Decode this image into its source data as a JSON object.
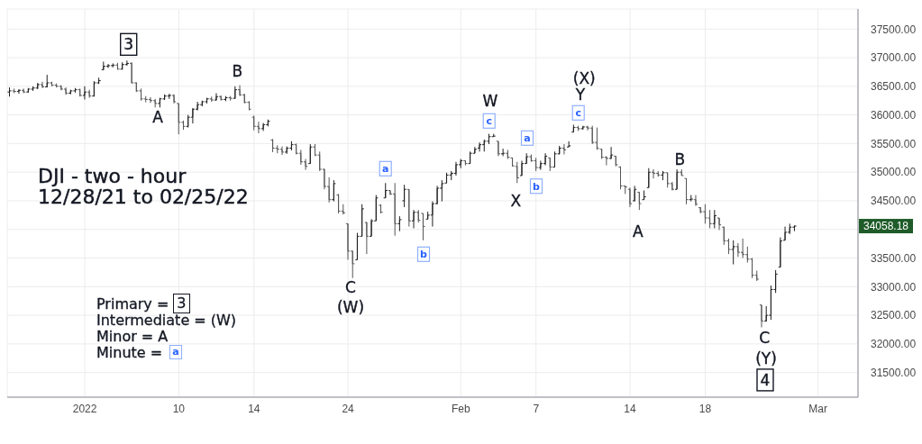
{
  "chart_data": {
    "type": "candlestick",
    "title": "DJI - two - hour",
    "subtitle": "12/28/21 to 02/25/22",
    "categories": [
      null,
      null,
      null,
      null,
      null,
      null,
      null,
      null,
      null,
      null,
      null,
      null,
      null,
      null,
      null,
      null,
      "2022",
      null,
      null,
      null,
      null,
      null,
      null,
      null,
      null,
      null,
      null,
      null,
      null,
      null,
      null,
      null,
      null,
      null,
      null,
      null,
      "10",
      null,
      null,
      null,
      null,
      null,
      null,
      null,
      null,
      null,
      null,
      null,
      null,
      null,
      null,
      null,
      "14",
      null,
      null,
      null,
      null,
      null,
      null,
      null,
      null,
      null,
      null,
      null,
      null,
      null,
      null,
      null,
      null,
      null,
      null,
      null,
      "24",
      null,
      null,
      null,
      null,
      null,
      null,
      null,
      null,
      null,
      null,
      null,
      null,
      null,
      null,
      null,
      null,
      null,
      null,
      null,
      null,
      null,
      null,
      null,
      "Feb",
      null,
      null,
      null,
      null,
      null,
      null,
      null,
      null,
      null,
      null,
      null,
      null,
      null,
      null,
      null,
      "7",
      null,
      null,
      null,
      null,
      null,
      null,
      null,
      null,
      null,
      null,
      null,
      null,
      null,
      null,
      null,
      null,
      null,
      null,
      null,
      "14",
      null,
      null,
      null,
      null,
      null,
      null,
      null,
      null,
      null,
      null,
      null,
      null,
      null,
      null,
      null,
      "18",
      null,
      null,
      null,
      null,
      null,
      null,
      null,
      null,
      null,
      null,
      null,
      null,
      null,
      null,
      null,
      null,
      null,
      null,
      null,
      null,
      null,
      null,
      null,
      "Mar",
      null,
      null,
      null,
      null,
      null,
      null,
      null,
      null
    ],
    "ohlc": [
      [
        36400,
        36480,
        36320,
        36420
      ],
      [
        36420,
        36460,
        36380,
        36410
      ],
      [
        36410,
        36450,
        36370,
        36430
      ],
      [
        36430,
        36460,
        36380,
        36400
      ],
      [
        36400,
        36470,
        36390,
        36450
      ],
      [
        36450,
        36500,
        36420,
        36470
      ],
      [
        36470,
        36560,
        36450,
        36530
      ],
      [
        36530,
        36580,
        36470,
        36490
      ],
      [
        36490,
        36700,
        36480,
        36560
      ],
      [
        36560,
        36580,
        36500,
        36520
      ],
      [
        36520,
        36550,
        36480,
        36500
      ],
      [
        36500,
        36520,
        36430,
        36450
      ],
      [
        36450,
        36480,
        36350,
        36380
      ],
      [
        36380,
        36440,
        36360,
        36420
      ],
      [
        36420,
        36470,
        36390,
        36440
      ],
      [
        36440,
        36460,
        36320,
        36340
      ],
      [
        36340,
        36500,
        36270,
        36400
      ],
      [
        36400,
        36440,
        36300,
        36330
      ],
      [
        36330,
        36590,
        36320,
        36560
      ],
      [
        36560,
        36650,
        36540,
        36600
      ],
      [
        36790,
        36930,
        36780,
        36850
      ],
      [
        36850,
        36890,
        36820,
        36860
      ],
      [
        36860,
        36900,
        36830,
        36870
      ],
      [
        36870,
        36910,
        36790,
        36800
      ],
      [
        36800,
        36920,
        36790,
        36880
      ],
      [
        36880,
        36950,
        36860,
        36900
      ],
      [
        36900,
        36920,
        36550,
        36560
      ],
      [
        36560,
        36570,
        36400,
        36420
      ],
      [
        36420,
        36460,
        36250,
        36280
      ],
      [
        36280,
        36330,
        36220,
        36270
      ],
      [
        36270,
        36310,
        36210,
        36250
      ],
      [
        36250,
        36280,
        36130,
        36200
      ],
      [
        36200,
        36300,
        36130,
        36280
      ],
      [
        36280,
        36360,
        36260,
        36330
      ],
      [
        36330,
        36370,
        36280,
        36340
      ],
      [
        36340,
        36360,
        36200,
        36230
      ],
      [
        36200,
        36200,
        35660,
        35870
      ],
      [
        35870,
        35900,
        35740,
        35800
      ],
      [
        35800,
        36000,
        35780,
        35960
      ],
      [
        35960,
        36120,
        35850,
        36100
      ],
      [
        36100,
        36230,
        36080,
        36180
      ],
      [
        36180,
        36250,
        36150,
        36230
      ],
      [
        36230,
        36300,
        36200,
        36280
      ],
      [
        36280,
        36320,
        36230,
        36260
      ],
      [
        36260,
        36380,
        36250,
        36320
      ],
      [
        36320,
        36340,
        36250,
        36270
      ],
      [
        36270,
        36330,
        36240,
        36300
      ],
      [
        36300,
        36330,
        36250,
        36290
      ],
      [
        36290,
        36500,
        36280,
        36440
      ],
      [
        36440,
        36520,
        36330,
        36350
      ],
      [
        36350,
        36370,
        36200,
        36220
      ],
      [
        36220,
        36240,
        36080,
        36100
      ],
      [
        35960,
        35990,
        35730,
        35800
      ],
      [
        35800,
        35880,
        35680,
        35760
      ],
      [
        35760,
        35860,
        35720,
        35830
      ],
      [
        35830,
        35920,
        35800,
        35890
      ],
      [
        35560,
        35580,
        35350,
        35420
      ],
      [
        35420,
        35470,
        35330,
        35400
      ],
      [
        35400,
        35450,
        35300,
        35350
      ],
      [
        35350,
        35450,
        35320,
        35420
      ],
      [
        35420,
        35540,
        35380,
        35480
      ],
      [
        35480,
        35500,
        35310,
        35330
      ],
      [
        35330,
        35390,
        35130,
        35180
      ],
      [
        35180,
        35230,
        35040,
        35100
      ],
      [
        35150,
        35490,
        35150,
        35440
      ],
      [
        35440,
        35490,
        35280,
        35300
      ],
      [
        35300,
        35360,
        35020,
        35050
      ],
      [
        35050,
        35060,
        34700,
        34750
      ],
      [
        34750,
        34910,
        34470,
        34520
      ],
      [
        34520,
        34860,
        34490,
        34800
      ],
      [
        34600,
        34620,
        34280,
        34320
      ],
      [
        34320,
        34440,
        34260,
        34290
      ],
      [
        34100,
        34100,
        33470,
        33620
      ],
      [
        33620,
        33630,
        33150,
        33400
      ],
      [
        33470,
        33940,
        33470,
        33880
      ],
      [
        33880,
        34440,
        33880,
        34360
      ],
      [
        34120,
        34130,
        33570,
        33880
      ],
      [
        33880,
        34180,
        33880,
        34150
      ],
      [
        34150,
        34600,
        34150,
        34550
      ],
      [
        34420,
        34440,
        34280,
        34300
      ],
      [
        34550,
        34810,
        34550,
        34680
      ],
      [
        34680,
        34680,
        34600,
        34620
      ],
      [
        34620,
        34810,
        33890,
        34100
      ],
      [
        34100,
        34230,
        33970,
        34170
      ],
      [
        34500,
        34780,
        34390,
        34700
      ],
      [
        34700,
        34700,
        34050,
        34150
      ],
      [
        34150,
        34340,
        34020,
        34300
      ],
      [
        34300,
        34340,
        34120,
        34160
      ],
      [
        34280,
        34280,
        33810,
        34050
      ],
      [
        34180,
        34310,
        34180,
        34250
      ],
      [
        34250,
        34490,
        34050,
        34450
      ],
      [
        34450,
        34760,
        34440,
        34720
      ],
      [
        34720,
        34860,
        34490,
        34800
      ],
      [
        34810,
        34990,
        34810,
        34950
      ],
      [
        34950,
        35020,
        34860,
        34980
      ],
      [
        34980,
        35180,
        34940,
        35130
      ],
      [
        35130,
        35230,
        35070,
        35200
      ],
      [
        35200,
        35200,
        35120,
        35150
      ],
      [
        35150,
        35360,
        35150,
        35330
      ],
      [
        35330,
        35440,
        35330,
        35400
      ],
      [
        35420,
        35520,
        35360,
        35480
      ],
      [
        35480,
        35570,
        35360,
        35540
      ],
      [
        35540,
        35670,
        35490,
        35620
      ],
      [
        35620,
        35670,
        35620,
        35630
      ],
      [
        35540,
        35540,
        35280,
        35320
      ],
      [
        35320,
        35410,
        35280,
        35330
      ],
      [
        35330,
        35390,
        35230,
        35260
      ],
      [
        35250,
        35250,
        35100,
        35110
      ],
      [
        35100,
        35180,
        34810,
        34900
      ],
      [
        34940,
        35200,
        34940,
        35150
      ],
      [
        35150,
        35330,
        35150,
        35270
      ],
      [
        35270,
        35310,
        35180,
        35200
      ],
      [
        35200,
        35250,
        35020,
        35080
      ],
      [
        35080,
        35200,
        35040,
        35150
      ],
      [
        35150,
        35330,
        35120,
        35280
      ],
      [
        35250,
        35250,
        35020,
        35090
      ],
      [
        35090,
        35360,
        35090,
        35320
      ],
      [
        35320,
        35460,
        35310,
        35420
      ],
      [
        35420,
        35490,
        35310,
        35390
      ],
      [
        35440,
        35540,
        35440,
        35460
      ],
      [
        35700,
        35830,
        35700,
        35780
      ],
      [
        35780,
        35810,
        35720,
        35760
      ],
      [
        35760,
        35810,
        35740,
        35790
      ],
      [
        35790,
        35810,
        35730,
        35770
      ],
      [
        35770,
        35810,
        35490,
        35520
      ],
      [
        35520,
        35780,
        35390,
        35420
      ],
      [
        35400,
        35410,
        35230,
        35260
      ],
      [
        35260,
        35280,
        35120,
        35240
      ],
      [
        35240,
        35440,
        35230,
        35300
      ],
      [
        35280,
        35280,
        35100,
        35130
      ],
      [
        35090,
        35100,
        34700,
        34760
      ],
      [
        34760,
        34760,
        34620,
        34740
      ],
      [
        34700,
        34730,
        34390,
        34450
      ],
      [
        34500,
        34760,
        34490,
        34700
      ],
      [
        34650,
        34650,
        34340,
        34450
      ],
      [
        34520,
        34680,
        34520,
        34570
      ],
      [
        34730,
        35070,
        34730,
        35000
      ],
      [
        35000,
        35050,
        34890,
        34980
      ],
      [
        34980,
        35020,
        34920,
        34950
      ],
      [
        34950,
        35020,
        34860,
        34990
      ],
      [
        34990,
        34990,
        34730,
        34800
      ],
      [
        34800,
        34830,
        34680,
        34700
      ],
      [
        34700,
        35050,
        34700,
        35000
      ],
      [
        35000,
        35050,
        34940,
        34940
      ],
      [
        34890,
        34890,
        34440,
        34520
      ],
      [
        34520,
        34600,
        34490,
        34530
      ],
      [
        34520,
        34600,
        34410,
        34440
      ],
      [
        34380,
        34390,
        34280,
        34310
      ],
      [
        34310,
        34440,
        34100,
        34200
      ],
      [
        34200,
        34340,
        34020,
        34100
      ],
      [
        34100,
        34340,
        34020,
        34240
      ],
      [
        34200,
        34200,
        33990,
        34080
      ],
      [
        34040,
        34050,
        33730,
        33800
      ],
      [
        33800,
        33840,
        33570,
        33650
      ],
      [
        33650,
        33810,
        33390,
        33700
      ],
      [
        33700,
        33760,
        33520,
        33600
      ],
      [
        33600,
        33840,
        33500,
        33560
      ],
      [
        33560,
        33700,
        33420,
        33480
      ],
      [
        33480,
        33500,
        33150,
        33200
      ],
      [
        33200,
        33280,
        33100,
        33130
      ],
      [
        32680,
        32680,
        32290,
        32400
      ],
      [
        32400,
        32660,
        32390,
        32500
      ],
      [
        32500,
        33020,
        32420,
        32950
      ],
      [
        32950,
        33290,
        32890,
        33220
      ],
      [
        33340,
        33860,
        33340,
        33800
      ],
      [
        33810,
        34050,
        33810,
        33950
      ],
      [
        33950,
        34100,
        33920,
        34040
      ],
      [
        34040,
        34070,
        33970,
        34058.18
      ],
      null,
      null,
      null,
      null,
      null,
      null,
      null,
      null,
      null,
      null,
      null,
      null,
      null
    ],
    "colors": [
      "#1f1f1f",
      "#555555",
      "#1f1f1f",
      "#555555",
      "#1f1f1f",
      "#1f1f1f",
      "#1f1f1f",
      "#555555",
      "#1f1f1f",
      "#555555",
      "#555555",
      "#555555",
      "#555555",
      "#1f1f1f",
      "#1f1f1f",
      "#555555",
      "#1f1f1f",
      "#555555",
      "#1f1f1f",
      "#1f1f1f",
      "#1f1f1f",
      "#1f1f1f",
      "#1f1f1f",
      "#555555",
      "#1f1f1f",
      "#1f1f1f",
      "#555555",
      "#555555",
      "#555555",
      "#555555",
      "#555555",
      "#555555",
      "#1f1f1f",
      "#1f1f1f",
      "#1f1f1f",
      "#555555",
      "#555555",
      "#555555",
      "#1f1f1f",
      "#1f1f1f",
      "#1f1f1f",
      "#1f1f1f",
      "#1f1f1f",
      "#555555",
      "#1f1f1f",
      "#555555",
      "#1f1f1f",
      "#555555",
      "#1f1f1f",
      "#555555",
      "#555555",
      "#555555",
      "#555555",
      "#555555",
      "#1f1f1f",
      "#1f1f1f",
      "#555555",
      "#555555",
      "#555555",
      "#1f1f1f",
      "#1f1f1f",
      "#555555",
      "#555555",
      "#555555",
      "#1f1f1f",
      "#555555",
      "#555555",
      "#555555",
      "#555555",
      "#1f1f1f",
      "#555555",
      "#555555",
      "#555555",
      "#555555",
      "#1f1f1f",
      "#1f1f1f",
      "#555555",
      "#1f1f1f",
      "#1f1f1f",
      "#555555",
      "#1f1f1f",
      "#555555",
      "#555555",
      "#1f1f1f",
      "#1f1f1f",
      "#555555",
      "#1f1f1f",
      "#555555",
      "#555555",
      "#1f1f1f",
      "#1f1f1f",
      "#1f1f1f",
      "#1f1f1f",
      "#1f1f1f",
      "#1f1f1f",
      "#1f1f1f",
      "#1f1f1f",
      "#555555",
      "#1f1f1f",
      "#1f1f1f",
      "#1f1f1f",
      "#1f1f1f",
      "#1f1f1f",
      "#1f1f1f",
      "#555555",
      "#1f1f1f",
      "#555555",
      "#555555",
      "#555555",
      "#1f1f1f",
      "#1f1f1f",
      "#555555",
      "#555555",
      "#1f1f1f",
      "#1f1f1f",
      "#555555",
      "#1f1f1f",
      "#1f1f1f",
      "#555555",
      "#1f1f1f",
      "#1f1f1f",
      "#555555",
      "#1f1f1f",
      "#555555",
      "#555555",
      "#555555",
      "#555555",
      "#555555",
      "#1f1f1f",
      "#555555",
      "#555555",
      "#555555",
      "#555555",
      "#1f1f1f",
      "#555555",
      "#1f1f1f",
      "#1f1f1f",
      "#555555",
      "#555555",
      "#1f1f1f",
      "#555555",
      "#555555",
      "#1f1f1f",
      "#555555",
      "#555555",
      "#1f1f1f",
      "#555555",
      "#555555",
      "#555555",
      "#555555",
      "#1f1f1f",
      "#555555",
      "#555555",
      "#555555",
      "#1f1f1f",
      "#555555",
      "#555555",
      "#555555",
      "#555555",
      "#555555",
      "#555555",
      "#1f1f1f",
      "#1f1f1f",
      "#1f1f1f",
      "#1f1f1f",
      "#1f1f1f",
      "#1f1f1f",
      "#1f1f1f",
      null,
      null,
      null,
      null,
      null,
      null,
      null,
      null,
      null,
      null,
      null,
      null,
      null
    ],
    "ylim": [
      31070,
      37850
    ],
    "yticks": [
      {
        "value": 31500,
        "label": "31500.00"
      },
      {
        "value": 32000,
        "label": "32000.00"
      },
      {
        "value": 32500,
        "label": "32500.00"
      },
      {
        "value": 33000,
        "label": "33000.00"
      },
      {
        "value": 33500,
        "label": "33500.00"
      },
      {
        "value": 34000,
        "label": null
      },
      {
        "value": 34500,
        "label": "34500.00"
      },
      {
        "value": 35000,
        "label": "35000.00"
      },
      {
        "value": 35500,
        "label": "35500.00"
      },
      {
        "value": 36000,
        "label": "36000.00"
      },
      {
        "value": 36500,
        "label": "36500.00"
      },
      {
        "value": 37000,
        "label": "37000.00"
      },
      {
        "value": 37500,
        "label": "37500.00"
      }
    ],
    "grid": true,
    "annotations": [
      {
        "text": "3",
        "y": 36950
      },
      "A",
      "B",
      "C",
      "(W)",
      "a",
      "b",
      "W",
      "c",
      "X",
      "a",
      "b",
      "(X)",
      "Y",
      "c",
      "A",
      "B",
      "C",
      "(Y)",
      "4",
      "Primary = 3",
      "Intermediate = (W)",
      "Minor = A",
      "Minute = a",
      "34058.18"
    ]
  }
}
